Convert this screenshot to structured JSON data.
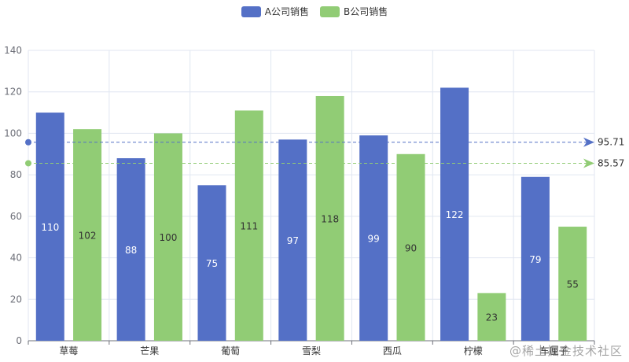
{
  "chart_data": {
    "type": "bar",
    "categories": [
      "草莓",
      "芒果",
      "葡萄",
      "雪梨",
      "西瓜",
      "柠檬",
      "车厘子"
    ],
    "series": [
      {
        "name": "A公司销售",
        "values": [
          110,
          88,
          75,
          97,
          99,
          122,
          79
        ],
        "color": "#5470c6",
        "label_color": "#ffffff"
      },
      {
        "name": "B公司销售",
        "values": [
          102,
          100,
          111,
          118,
          90,
          23,
          55
        ],
        "color": "#91cc75",
        "label_color": "#333333"
      }
    ],
    "average_lines": [
      {
        "series": "A公司销售",
        "value": 95.71,
        "label": "95.71",
        "color": "#5470c6"
      },
      {
        "series": "B公司销售",
        "value": 85.57,
        "label": "85.57",
        "color": "#91cc75"
      }
    ],
    "ylim": [
      0,
      140
    ],
    "y_ticks": [
      0,
      20,
      40,
      60,
      80,
      100,
      120,
      140
    ],
    "grid": true,
    "legend_position": "top-center",
    "title": "",
    "xlabel": "",
    "ylabel": ""
  },
  "watermark": "@稀土掘金技术社区"
}
